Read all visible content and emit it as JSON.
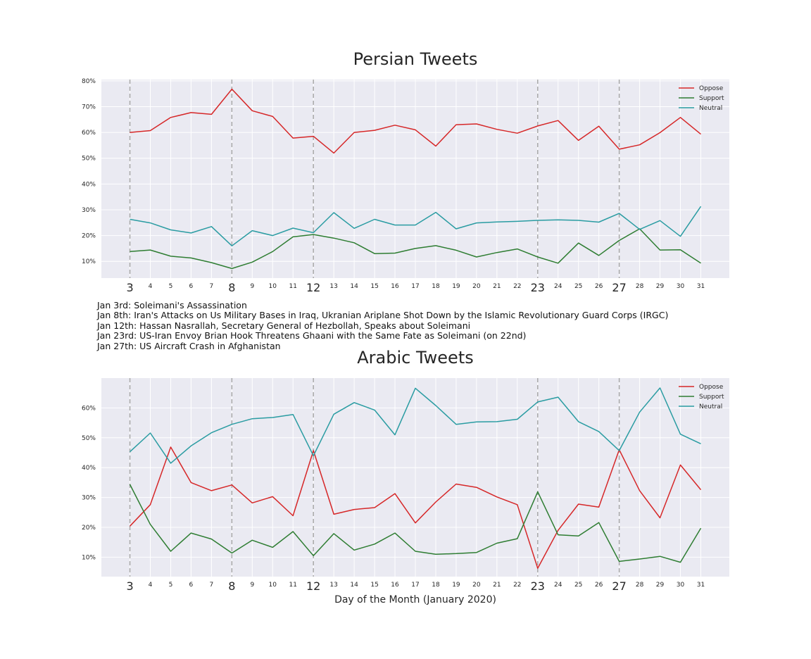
{
  "chart_data": [
    {
      "type": "line",
      "title": "Persian Tweets",
      "xlabel": "",
      "ylabel": "",
      "x": [
        3,
        4,
        5,
        6,
        7,
        8,
        9,
        10,
        11,
        12,
        13,
        14,
        15,
        16,
        17,
        18,
        19,
        20,
        21,
        22,
        23,
        24,
        25,
        26,
        27,
        28,
        29,
        30,
        31
      ],
      "ylim": [
        3.5,
        80.5
      ],
      "yticks": [
        "10%",
        "20%",
        "30%",
        "40%",
        "50%",
        "60%",
        "70%",
        "80%"
      ],
      "ytick_values": [
        10,
        20,
        30,
        40,
        50,
        60,
        70,
        80
      ],
      "grid": true,
      "legend_position": "upper right",
      "highlight_days": [
        3,
        8,
        12,
        23,
        27
      ],
      "series": [
        {
          "name": "Oppose",
          "color": "#d62728",
          "values": [
            60.0,
            60.7,
            65.8,
            67.7,
            67.0,
            76.8,
            68.4,
            66.2,
            57.8,
            58.5,
            52.0,
            60.0,
            60.8,
            62.8,
            61.0,
            54.7,
            63.0,
            63.3,
            61.2,
            59.7,
            62.5,
            64.6,
            56.9,
            62.4,
            53.5,
            55.2,
            59.9,
            65.8,
            59.3
          ]
        },
        {
          "name": "Support",
          "color": "#2e7d32",
          "values": [
            13.8,
            14.4,
            12.0,
            11.3,
            9.5,
            7.2,
            9.7,
            13.8,
            19.5,
            20.4,
            19.0,
            17.2,
            13.0,
            13.2,
            15.0,
            16.1,
            14.3,
            11.7,
            13.4,
            14.8,
            11.7,
            9.3,
            17.1,
            12.3,
            18.1,
            22.6,
            14.4,
            14.5,
            9.3
          ]
        },
        {
          "name": "Neutral",
          "color": "#2a9ca2",
          "values": [
            26.3,
            24.9,
            22.2,
            21.0,
            23.5,
            16.0,
            21.9,
            20.0,
            22.9,
            21.1,
            28.9,
            22.8,
            26.3,
            24.1,
            24.1,
            29.0,
            22.6,
            24.9,
            25.3,
            25.5,
            25.9,
            26.1,
            25.9,
            25.2,
            28.6,
            22.4,
            25.8,
            19.7,
            31.3
          ]
        }
      ]
    },
    {
      "type": "line",
      "title": "Arabic Tweets",
      "xlabel": "Day of the Month (January 2020)",
      "ylabel": "",
      "x": [
        3,
        4,
        5,
        6,
        7,
        8,
        9,
        10,
        11,
        12,
        13,
        14,
        15,
        16,
        17,
        18,
        19,
        20,
        21,
        22,
        23,
        24,
        25,
        26,
        27,
        28,
        29,
        30,
        31
      ],
      "ylim": [
        3.5,
        70.0
      ],
      "yticks": [
        "10%",
        "20%",
        "30%",
        "40%",
        "50%",
        "60%"
      ],
      "ytick_values": [
        10,
        20,
        30,
        40,
        50,
        60
      ],
      "grid": true,
      "legend_position": "upper right",
      "highlight_days": [
        3,
        8,
        12,
        23,
        27
      ],
      "series": [
        {
          "name": "Oppose",
          "color": "#d62728",
          "values": [
            20.4,
            27.6,
            46.9,
            35.0,
            32.3,
            34.2,
            28.2,
            30.3,
            23.9,
            45.7,
            24.4,
            26.0,
            26.6,
            31.3,
            21.5,
            28.5,
            34.5,
            33.4,
            30.2,
            27.6,
            6.3,
            19.0,
            27.8,
            26.8,
            46.0,
            32.3,
            23.2,
            40.9,
            32.6
          ]
        },
        {
          "name": "Support",
          "color": "#2e7d32",
          "values": [
            34.4,
            21.0,
            12.0,
            18.1,
            16.1,
            11.4,
            15.7,
            13.3,
            18.6,
            10.5,
            17.9,
            12.4,
            14.4,
            18.1,
            12.0,
            11.0,
            11.2,
            11.6,
            14.7,
            16.2,
            31.9,
            17.5,
            17.1,
            21.6,
            8.6,
            9.4,
            10.3,
            8.3,
            19.7
          ]
        },
        {
          "name": "Neutral",
          "color": "#2a9ca2",
          "values": [
            45.3,
            51.6,
            41.5,
            47.3,
            51.7,
            54.5,
            56.4,
            56.8,
            57.8,
            44.0,
            57.9,
            61.8,
            59.3,
            51.0,
            66.6,
            60.8,
            54.5,
            55.3,
            55.4,
            56.2,
            62.0,
            63.6,
            55.4,
            52.1,
            45.7,
            58.6,
            66.7,
            51.2,
            48.0
          ]
        }
      ]
    }
  ],
  "annotations": [
    "Jan 3rd: Soleimani's Assassination",
    "Jan 8th: Iran's Attacks on Us Military Bases in Iraq, Ukranian Ariplane Shot Down by the Islamic Revolutionary Guard Corps (IRGC)",
    "Jan 12th: Hassan Nasrallah, Secretary General of Hezbollah, Speaks about Soleimani",
    "Jan 23rd: US-Iran Envoy Brian Hook Threatens Ghaani with the Same Fate as Soleimani (on 22nd)",
    "Jan 27th: US Aircraft Crash in Afghanistan"
  ],
  "colors": {
    "plot_background": "#eaeaf2",
    "grid": "#ffffff",
    "highlight_line": "#a9a9a9"
  }
}
